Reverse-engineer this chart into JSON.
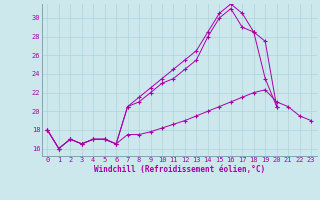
{
  "xlabel": "Windchill (Refroidissement éolien,°C)",
  "background_color": "#cce8ed",
  "line_color": "#aa00aa",
  "grid_color": "#aad4d8",
  "xlim": [
    -0.5,
    23.5
  ],
  "ylim": [
    15.2,
    31.5
  ],
  "yticks": [
    16,
    18,
    20,
    22,
    24,
    26,
    28,
    30
  ],
  "xtick_labels": [
    "0",
    "1",
    "2",
    "3",
    "4",
    "5",
    "6",
    "7",
    "8",
    "9",
    "10",
    "11",
    "12",
    "13",
    "14",
    "15",
    "16",
    "17",
    "18",
    "19",
    "20",
    "21",
    "22",
    "23"
  ],
  "xtick_vals": [
    0,
    1,
    2,
    3,
    4,
    5,
    6,
    7,
    8,
    9,
    10,
    11,
    12,
    13,
    14,
    15,
    16,
    17,
    18,
    19,
    20,
    21,
    22,
    23
  ],
  "series1_x": [
    0,
    1,
    2,
    3,
    4,
    5,
    6,
    7,
    8,
    9,
    10,
    11,
    12,
    13,
    14,
    15,
    16,
    17,
    18,
    19,
    20,
    21,
    22,
    23
  ],
  "series1_y": [
    18.0,
    16.0,
    17.0,
    16.5,
    17.0,
    17.0,
    16.5,
    17.5,
    17.5,
    17.8,
    18.2,
    18.6,
    19.0,
    19.5,
    20.0,
    20.5,
    21.0,
    21.5,
    22.0,
    22.3,
    21.0,
    20.5,
    19.5,
    19.0
  ],
  "series2_x": [
    0,
    1,
    2,
    3,
    4,
    5,
    6,
    7,
    8,
    9,
    10,
    11,
    12,
    13,
    14,
    15,
    16,
    17,
    18,
    19,
    20
  ],
  "series2_y": [
    18.0,
    16.0,
    17.0,
    16.5,
    17.0,
    17.0,
    16.5,
    20.5,
    21.5,
    22.5,
    23.5,
    24.5,
    25.5,
    26.5,
    28.5,
    30.5,
    31.5,
    30.5,
    28.5,
    27.5,
    20.5
  ],
  "series3_x": [
    0,
    1,
    2,
    3,
    4,
    5,
    6,
    7,
    8,
    9,
    10,
    11,
    12,
    13,
    14,
    15,
    16,
    17,
    18,
    19,
    20
  ],
  "series3_y": [
    18.0,
    16.0,
    17.0,
    16.5,
    17.0,
    17.0,
    16.5,
    20.5,
    21.0,
    22.0,
    23.0,
    23.5,
    24.5,
    25.5,
    28.0,
    30.0,
    31.0,
    29.0,
    28.5,
    23.5,
    20.5
  ]
}
